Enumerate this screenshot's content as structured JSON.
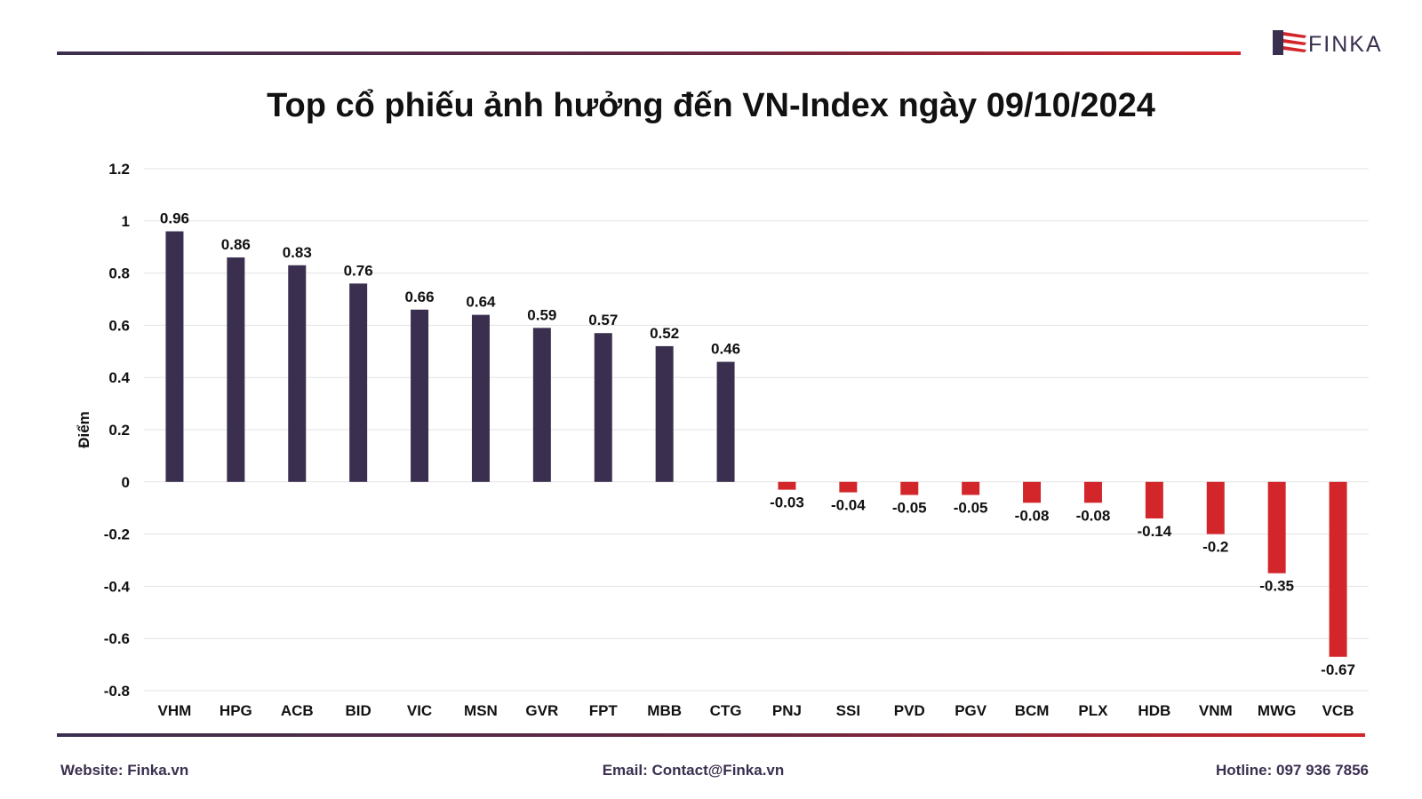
{
  "brand": {
    "name": "FINKA",
    "color_dark": "#3b2f4f",
    "color_red": "#d2262a"
  },
  "title": "Top cổ phiếu ảnh hưởng đến VN-Index ngày 09/10/2024",
  "footer": {
    "website": "Website: Finka.vn",
    "email": "Email: Contact@Finka.vn",
    "hotline": "Hotline: 097 936 7856"
  },
  "chart_data": {
    "type": "bar",
    "ylabel": "Điểm",
    "xlabel": "",
    "ylim": [
      -0.8,
      1.2
    ],
    "yticks": [
      1.2,
      1,
      0.8,
      0.6,
      0.4,
      0.2,
      0,
      -0.2,
      -0.4,
      -0.6,
      -0.8
    ],
    "grid": true,
    "legend": "none",
    "categories": [
      "VHM",
      "HPG",
      "ACB",
      "BID",
      "VIC",
      "MSN",
      "GVR",
      "FPT",
      "MBB",
      "CTG",
      "PNJ",
      "SSI",
      "PVD",
      "PGV",
      "BCM",
      "PLX",
      "HDB",
      "VNM",
      "MWG",
      "VCB"
    ],
    "values": [
      0.96,
      0.86,
      0.83,
      0.76,
      0.66,
      0.64,
      0.59,
      0.57,
      0.52,
      0.46,
      -0.03,
      -0.04,
      -0.05,
      -0.05,
      -0.08,
      -0.08,
      -0.14,
      -0.2,
      -0.35,
      -0.67
    ],
    "colors": {
      "positive": "#3b2f4f",
      "negative": "#d2262a"
    }
  }
}
